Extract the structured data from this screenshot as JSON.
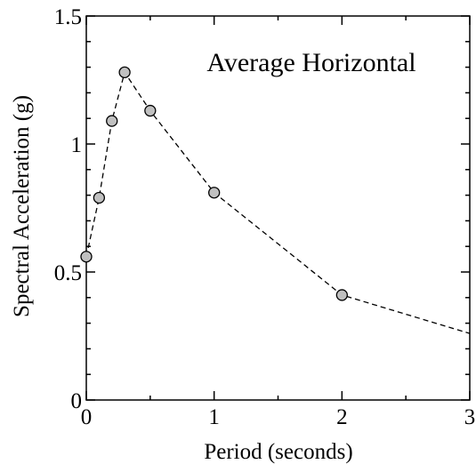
{
  "chart_data": {
    "type": "line",
    "title": "Average Horizontal",
    "xlabel": "Period (seconds)",
    "ylabel": "Spectral Acceleration (g)",
    "xlim": [
      0,
      3
    ],
    "ylim": [
      0,
      1.5
    ],
    "x_ticks": [
      0,
      1,
      2,
      3
    ],
    "x_tick_labels": [
      "0",
      "1",
      "2",
      "3"
    ],
    "y_ticks": [
      0,
      0.5,
      1,
      1.5
    ],
    "y_tick_labels": [
      "0",
      "0.5",
      "1",
      "1.5"
    ],
    "grid": false,
    "series": [
      {
        "line_style": "dashed",
        "line": {
          "x": [
            0,
            0.1,
            0.2,
            0.3,
            0.5,
            1.0,
            2.0,
            3.0
          ],
          "y": [
            0.56,
            0.79,
            1.09,
            1.28,
            1.13,
            0.81,
            0.41,
            0.26
          ]
        },
        "markers": {
          "x": [
            0,
            0.1,
            0.2,
            0.3,
            0.5,
            1.0,
            2.0
          ],
          "y": [
            0.56,
            0.79,
            1.09,
            1.28,
            1.13,
            0.81,
            0.41
          ]
        }
      }
    ],
    "colors": {
      "marker_fill": "#c0c0c0",
      "marker_stroke": "#000000",
      "line": "#000000",
      "axis": "#000000"
    }
  }
}
